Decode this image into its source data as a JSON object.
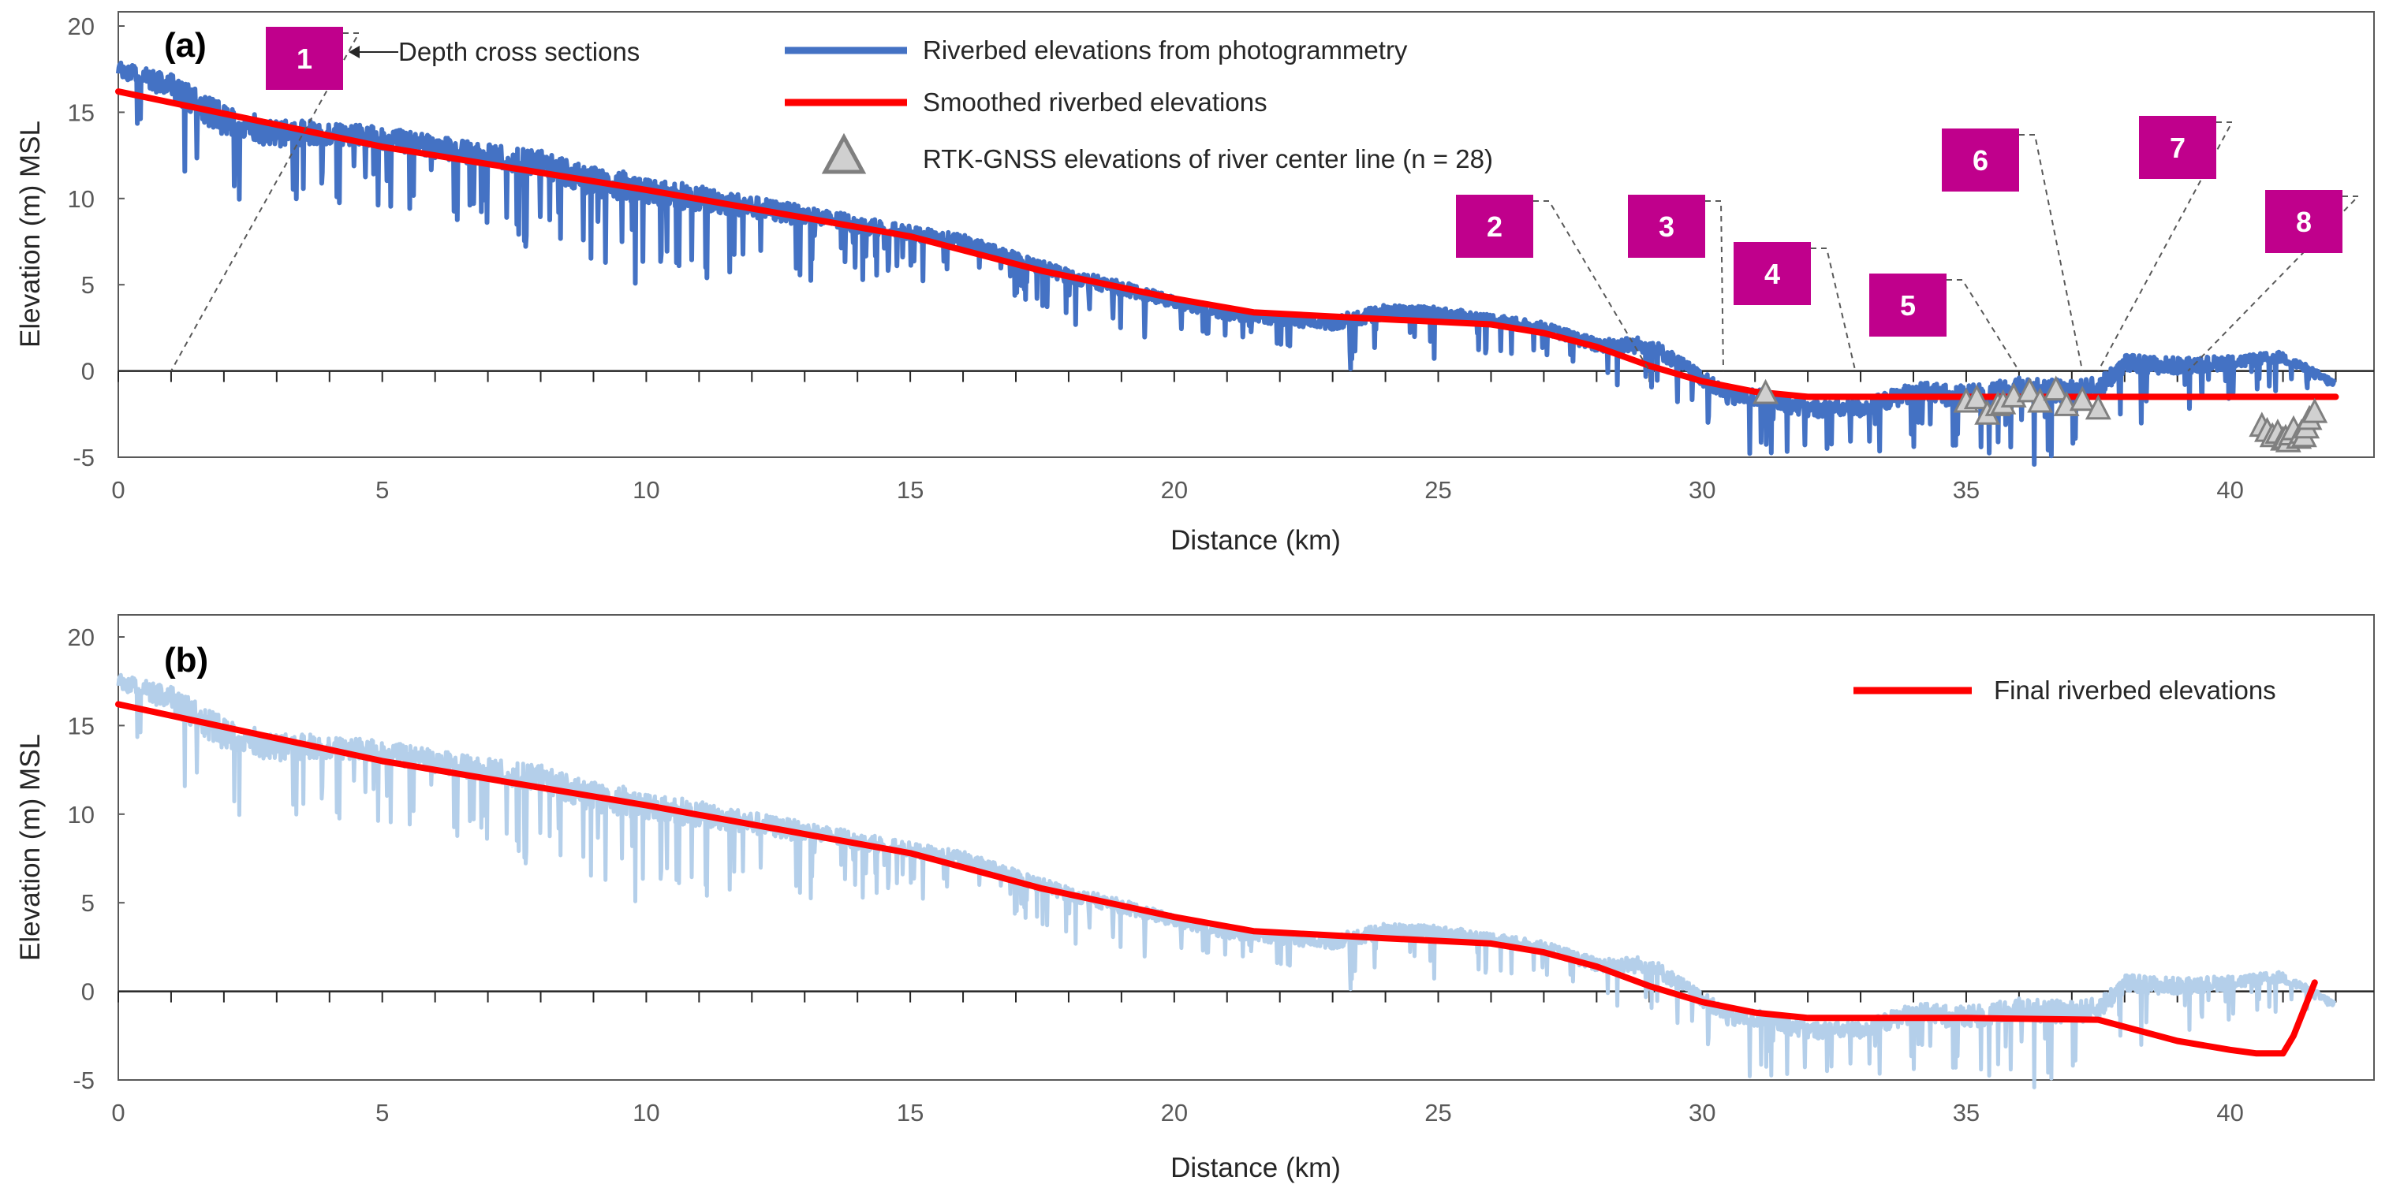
{
  "colors": {
    "photogrammetry": "#4472C4",
    "photogrammetry_light": "#B4CFEA",
    "smoothed": "#FF0000",
    "rtk_fill": "#D0D0D0",
    "rtk_stroke": "#7F7F7F",
    "section_box": "#C0008C",
    "axis": "#262626",
    "frame": "#595959",
    "tick_text": "#595959"
  },
  "chart_data": [
    {
      "panel_label": "(a)",
      "type": "line",
      "xlabel": "Distance (km)",
      "ylabel": "Elevation (m) MSL",
      "xlim": [
        0,
        42.5
      ],
      "ylim": [
        -5,
        20
      ],
      "x_ticks": [
        0,
        5,
        10,
        15,
        20,
        25,
        30,
        35,
        40
      ],
      "y_ticks": [
        20,
        15,
        10,
        5,
        0,
        -5
      ],
      "x_minor_tick_step": 1,
      "grid": false,
      "legend": {
        "position": "top-center",
        "entries": [
          {
            "label": "Riverbed elevations from photogrammetry",
            "marker": "line",
            "color": "#4472C4"
          },
          {
            "label": "Smoothed riverbed elevations",
            "marker": "line",
            "color": "#FF0000"
          },
          {
            "label": "RTK-GNSS elevations of river center line (n = 28)",
            "marker": "triangle",
            "color": "#D0D0D0"
          }
        ]
      },
      "annotation_text": "Depth cross sections",
      "series": [
        {
          "name": "Riverbed elevations from photogrammetry",
          "style": "line-noisy",
          "x": [
            0,
            1,
            2,
            3,
            4,
            5,
            6,
            7,
            8,
            9,
            10,
            11,
            12,
            13,
            14,
            15,
            16,
            17,
            18,
            19,
            20,
            21,
            22,
            23,
            24,
            25,
            26,
            27,
            28,
            29,
            29.8,
            30.5,
            31,
            32,
            33,
            34,
            35,
            36,
            37,
            37.5,
            38,
            39,
            40,
            41,
            42
          ],
          "y": [
            17.5,
            16.5,
            14.5,
            13.8,
            13.8,
            13.5,
            13.0,
            12.5,
            12.0,
            11.0,
            10.5,
            10.0,
            9.5,
            9.0,
            8.5,
            8.0,
            7.5,
            6.5,
            5.5,
            4.8,
            4.0,
            3.3,
            3.0,
            2.8,
            3.4,
            3.3,
            3.0,
            2.5,
            1.5,
            1.5,
            0.0,
            -1.5,
            -1.5,
            -2.2,
            -2.2,
            -1.2,
            -1.5,
            -1.0,
            -1.2,
            -1.0,
            0.4,
            0.3,
            0.5,
            0.8,
            -0.8
          ],
          "noise_amplitude": [
            0.5,
            0.9,
            1.2,
            1.0,
            0.8,
            0.8,
            0.8,
            0.8,
            1.0,
            1.1,
            1.0,
            0.9,
            0.8,
            0.7,
            0.6,
            0.5,
            0.5,
            0.5,
            0.5,
            0.5,
            0.4,
            0.4,
            0.4,
            0.5,
            0.6,
            0.5,
            0.4,
            0.4,
            0.5,
            0.6,
            0.5,
            0.6,
            0.6,
            0.6,
            0.6,
            0.7,
            0.8,
            0.8,
            0.8,
            0.8,
            0.7,
            0.6,
            0.5,
            0.4,
            0.3
          ]
        },
        {
          "name": "Smoothed riverbed elevations",
          "style": "line",
          "x": [
            0,
            5,
            10,
            15,
            17.5,
            20,
            21.5,
            24,
            26,
            27,
            28,
            29,
            30,
            31,
            32,
            35,
            42
          ],
          "y": [
            16.2,
            13.0,
            10.5,
            7.8,
            5.8,
            4.2,
            3.4,
            3.0,
            2.7,
            2.2,
            1.4,
            0.3,
            -0.6,
            -1.2,
            -1.5,
            -1.5,
            -1.5
          ]
        },
        {
          "name": "RTK-GNSS elevations of river center line (n = 28)",
          "style": "markers-triangle",
          "x": [
            31.2,
            35.0,
            35.2,
            35.4,
            35.6,
            35.7,
            35.9,
            36.2,
            36.4,
            36.7,
            36.9,
            37.2,
            37.5,
            40.6,
            40.7,
            40.8,
            40.9,
            41.0,
            41.05,
            41.1,
            41.15,
            41.2,
            41.3,
            41.35,
            41.4,
            41.45,
            41.5,
            41.6
          ],
          "y": [
            -1.3,
            -1.8,
            -1.6,
            -2.5,
            -2.0,
            -1.9,
            -1.5,
            -1.2,
            -1.8,
            -1.1,
            -2.0,
            -1.7,
            -2.2,
            -3.2,
            -3.5,
            -3.8,
            -3.6,
            -4.0,
            -3.9,
            -4.1,
            -3.7,
            -3.4,
            -3.9,
            -3.6,
            -3.8,
            -3.3,
            -2.8,
            -2.4
          ]
        }
      ],
      "depth_cross_sections": [
        {
          "label": "1",
          "distance_km": 1.0
        },
        {
          "label": "2",
          "distance_km": 29.0
        },
        {
          "label": "3",
          "distance_km": 30.4
        },
        {
          "label": "4",
          "distance_km": 32.9
        },
        {
          "label": "5",
          "distance_km": 36.0
        },
        {
          "label": "6",
          "distance_km": 37.2
        },
        {
          "label": "7",
          "distance_km": 37.5
        },
        {
          "label": "8",
          "distance_km": 39.2
        }
      ]
    },
    {
      "panel_label": "(b)",
      "type": "line",
      "xlabel": "Distance (km)",
      "ylabel": "Elevation (m) MSL",
      "xlim": [
        0,
        42.5
      ],
      "ylim": [
        -5,
        20
      ],
      "x_ticks": [
        0,
        5,
        10,
        15,
        20,
        25,
        30,
        35,
        40
      ],
      "y_ticks": [
        20,
        15,
        10,
        5,
        0,
        -5
      ],
      "x_minor_tick_step": 1,
      "grid": false,
      "legend": {
        "position": "top-right",
        "entries": [
          {
            "label": "Final riverbed elevations",
            "marker": "line",
            "color": "#FF0000"
          }
        ]
      },
      "series": [
        {
          "style": "line-noisy",
          "x": [
            0,
            1,
            2,
            3,
            4,
            5,
            6,
            7,
            8,
            9,
            10,
            11,
            12,
            13,
            14,
            15,
            16,
            17,
            18,
            19,
            20,
            21,
            22,
            23,
            24,
            25,
            26,
            27,
            28,
            29,
            29.8,
            30.5,
            31,
            32,
            33,
            34,
            35,
            36,
            37,
            37.5,
            38,
            39,
            40,
            41,
            42
          ],
          "y": [
            17.5,
            16.5,
            14.5,
            13.8,
            13.8,
            13.5,
            13.0,
            12.5,
            12.0,
            11.0,
            10.5,
            10.0,
            9.5,
            9.0,
            8.5,
            8.0,
            7.5,
            6.5,
            5.5,
            4.8,
            4.0,
            3.3,
            3.0,
            2.8,
            3.4,
            3.3,
            3.0,
            2.5,
            1.5,
            1.5,
            0.0,
            -1.5,
            -1.5,
            -2.2,
            -2.2,
            -1.2,
            -1.5,
            -1.0,
            -1.2,
            -1.0,
            0.4,
            0.3,
            0.5,
            0.8,
            -0.8
          ],
          "noise_amplitude": [
            0.5,
            0.9,
            1.2,
            1.0,
            0.8,
            0.8,
            0.8,
            0.8,
            1.0,
            1.1,
            1.0,
            0.9,
            0.8,
            0.7,
            0.6,
            0.5,
            0.5,
            0.5,
            0.5,
            0.5,
            0.4,
            0.4,
            0.4,
            0.5,
            0.6,
            0.5,
            0.4,
            0.4,
            0.5,
            0.6,
            0.5,
            0.6,
            0.6,
            0.6,
            0.6,
            0.7,
            0.8,
            0.8,
            0.8,
            0.8,
            0.7,
            0.6,
            0.5,
            0.4,
            0.3
          ]
        },
        {
          "name": "Final riverbed elevations",
          "style": "line",
          "x": [
            0,
            5,
            10,
            15,
            17.5,
            20,
            21.5,
            24,
            26,
            27,
            28,
            29,
            30,
            31,
            32,
            35,
            37.5,
            39,
            40,
            40.5,
            41.0,
            41.2,
            41.4,
            41.6
          ],
          "y": [
            16.2,
            13.0,
            10.5,
            7.8,
            5.8,
            4.2,
            3.4,
            3.0,
            2.7,
            2.2,
            1.4,
            0.3,
            -0.6,
            -1.2,
            -1.5,
            -1.5,
            -1.6,
            -2.8,
            -3.3,
            -3.5,
            -3.5,
            -2.5,
            -1.0,
            0.5
          ]
        }
      ]
    }
  ]
}
